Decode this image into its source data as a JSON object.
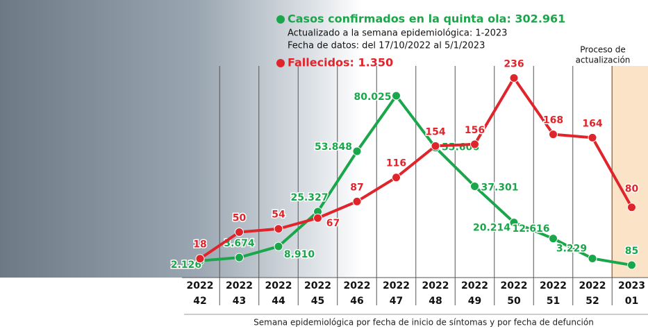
{
  "chart_data": {
    "type": "line",
    "categories": [
      {
        "year": "2022",
        "week": "42"
      },
      {
        "year": "2022",
        "week": "43"
      },
      {
        "year": "2022",
        "week": "44"
      },
      {
        "year": "2022",
        "week": "45"
      },
      {
        "year": "2022",
        "week": "46"
      },
      {
        "year": "2022",
        "week": "47"
      },
      {
        "year": "2022",
        "week": "48"
      },
      {
        "year": "2022",
        "week": "49"
      },
      {
        "year": "2022",
        "week": "50"
      },
      {
        "year": "2022",
        "week": "51"
      },
      {
        "year": "2022",
        "week": "52"
      },
      {
        "year": "2023",
        "week": "01"
      }
    ],
    "subtitle": [
      "Actualizado a la semana epidemiológica: 1-2023",
      "Fecha de datos: del 17/10/2022 al 5/1/2023"
    ],
    "annotation": [
      "Proceso de",
      "actualización"
    ],
    "x_label": "Semana epidemiológica por fecha de inicio de síntomas y por fecha de defunción",
    "ylim": [
      0,
      90000
    ],
    "y2lim": [
      10,
      240
    ],
    "series": [
      {
        "name": "Casos confirmados en la quinta ola: 302.961",
        "color": "#1aa64a",
        "values": [
          2126,
          3674,
          8910,
          25327,
          53848,
          80025,
          55606,
          37301,
          20214,
          12616,
          3229,
          85
        ],
        "value_labels": [
          "2.126",
          "3.674",
          "8.910",
          "25.327",
          "53.848",
          "80.025",
          "55.606",
          "37.301",
          "20.214",
          "12.616",
          "3.229",
          "85"
        ]
      },
      {
        "name": "Fallecidos: 1.350",
        "color": "#e0242b",
        "axis": "y2",
        "values": [
          18,
          50,
          54,
          67,
          87,
          116,
          154,
          156,
          236,
          168,
          164,
          80
        ]
      }
    ]
  }
}
